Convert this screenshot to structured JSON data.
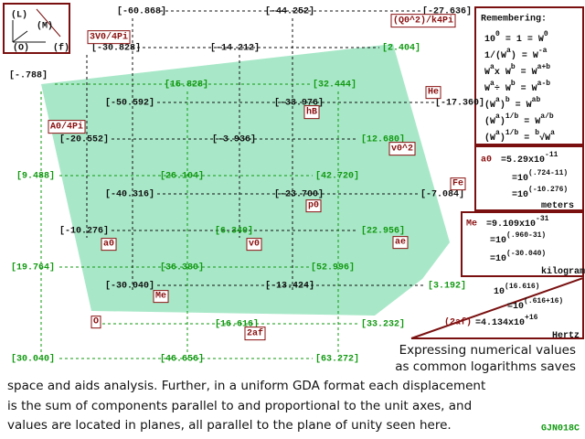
{
  "legend_icon": [
    "(L)",
    "(M)",
    "(O)",
    "(f)"
  ],
  "grid_labels": [
    "[-60.868]",
    "[-44.252]",
    "[-27.636]",
    "[-30.828]",
    "[-14.212]",
    "[-.788]",
    "[-50.592]",
    "[-33.976]",
    "[-17.360]",
    "[-20.552]",
    "[-3.936]",
    "[-40.316]",
    "[-23.700]",
    "[-7.084]",
    "[-10.276]",
    "[-30.040]",
    "[-13.424]"
  ],
  "plane_labels": [
    "[2.404]",
    "[15.828]",
    "[32.444]",
    "[12.680]",
    "[9.488]",
    "[26.104]",
    "[42.720]",
    "[6.340]",
    "[22.956]",
    "[19.764]",
    "[36.380]",
    "[52.996]",
    "[3.192]",
    "[16.616]",
    "[33.232]",
    "[30.040]",
    "[46.656]",
    "[63.272]"
  ],
  "boxed_labels": [
    "(Q0^2)/k4Pi",
    "3V0/4Pi",
    "He",
    "hB",
    "A0/4Pi",
    "v0^2",
    "Fe",
    "p0",
    "a0",
    "v0",
    "ae",
    "Me",
    "O",
    "2af"
  ],
  "remembering": {
    "title": "Remembering:",
    "lines": [
      [
        "10",
        "0",
        " = 1 = W",
        "0"
      ],
      [
        "1/(W",
        "a",
        ") = W",
        "-a"
      ],
      [
        "W",
        "a",
        "x W",
        "b",
        " = W",
        "a+b"
      ],
      [
        "W",
        "a",
        "÷ W",
        "b",
        " = W",
        "a-b"
      ],
      [
        "(W",
        "a",
        ")",
        "b",
        " = W",
        "ab"
      ],
      [
        "(W",
        "a",
        ")",
        "1/b",
        " = W",
        "a/b"
      ],
      [
        "(W",
        "a",
        ")",
        "1/b",
        " = ",
        "b",
        "√W",
        "a"
      ]
    ]
  },
  "constants": [
    {
      "label": "a0",
      "lines": [
        [
          "=5.29x10",
          "-11"
        ],
        [
          "=10",
          "(.724-11)"
        ],
        [
          "=10",
          "(-10.276)"
        ],
        [
          "meters"
        ]
      ]
    },
    {
      "label": "Me",
      "lines": [
        [
          "=9.109x10",
          "-31"
        ],
        [
          "=10",
          "(.960-31)"
        ],
        [
          "=10",
          "(-30.040)"
        ],
        [
          "kilograms"
        ]
      ]
    },
    {
      "label": "(2af)",
      "lines": [
        [
          "10",
          "(16.616)"
        ],
        [
          "=10",
          "(.616+16)"
        ],
        [
          "=4.134x10",
          "+16"
        ],
        [
          "Hertz"
        ]
      ]
    }
  ],
  "caption": [
    "Expressing numerical values",
    "as common logarithms saves",
    "space and aids analysis. Further, in a uniform GDA format each displacement",
    "is the sum of components parallel to and proportional to the unit axes, and",
    "values are located in planes, all parallel to the plane of unity seen here."
  ],
  "logo": "GJN018C"
}
